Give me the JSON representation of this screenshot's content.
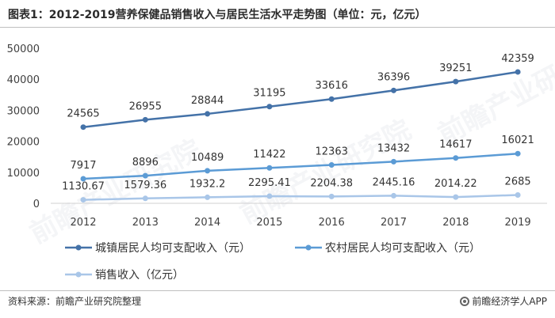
{
  "title": "图表1：2012-2019营养保健品销售收入与居民生活水平走势图（单位：元，亿元）",
  "footer": {
    "source": "资料来源：前瞻产业研究院整理",
    "brand": "前瞻经济学人APP"
  },
  "watermark_text": "前瞻产业研究院",
  "chart_data": {
    "type": "line",
    "title": "图表1：2012-2019营养保健品销售收入与居民生活水平走势图（单位：元，亿元）",
    "xlabel": "",
    "ylabel": "",
    "x": [
      "2012",
      "2013",
      "2014",
      "2015",
      "2016",
      "2017",
      "2018",
      "2019"
    ],
    "ylim": [
      0,
      50000
    ],
    "yticks": [
      "0",
      "10000",
      "20000",
      "30000",
      "40000",
      "50000"
    ],
    "grid": false,
    "legend_position": "bottom",
    "series": [
      {
        "name": "城镇居民人均可支配收入（元）",
        "color": "#4472a8",
        "values": [
          24565,
          26955,
          28844,
          31195,
          33616,
          36396,
          39251,
          42359
        ],
        "labels": [
          "24565",
          "26955",
          "28844",
          "31195",
          "33616",
          "36396",
          "39251",
          "42359"
        ]
      },
      {
        "name": "农村居民人均可支配收入（元）",
        "color": "#5b9bd5",
        "values": [
          7917,
          8896,
          10489,
          11422,
          12363,
          13432,
          14617,
          16021
        ],
        "labels": [
          "7917",
          "8896",
          "10489",
          "11422",
          "12363",
          "13432",
          "14617",
          "16021"
        ]
      },
      {
        "name": "销售收入（亿元）",
        "color": "#a9c6e8",
        "values": [
          1130.67,
          1579.36,
          1932.2,
          2295.41,
          2204.38,
          2445.16,
          2014.22,
          2685
        ],
        "labels": [
          "1130.67",
          "1579.36",
          "1932.2",
          "2295.41",
          "2204.38",
          "2445.16",
          "2014.22",
          "2685"
        ]
      }
    ]
  }
}
